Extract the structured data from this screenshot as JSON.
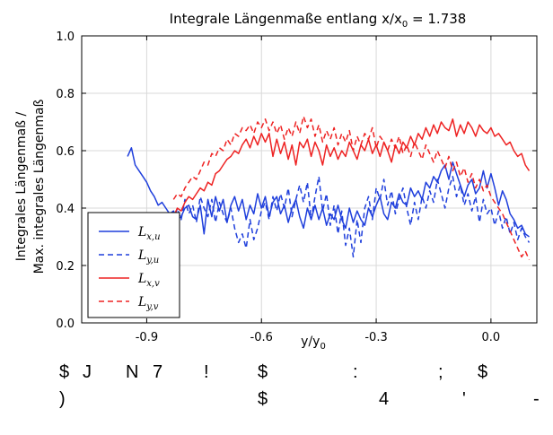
{
  "chart_data": {
    "type": "line",
    "title": "Integrale Längenmaße entlang x/x",
    "title_subscript": "0",
    "title_suffix": " = 1.738",
    "xlabel": "y/y",
    "xlabel_subscript": "0",
    "ylabel_line1": "Integrales Längenmaß /",
    "ylabel_line2": "Max. integrales Längenmaß",
    "xlim": [
      -1.07,
      0.12
    ],
    "ylim": [
      0.0,
      1.0
    ],
    "xticks": [
      -0.9,
      -0.6,
      -0.3,
      0.0
    ],
    "xtick_labels": [
      "-0.9",
      "-0.6",
      "-0.3",
      "0.0"
    ],
    "yticks": [
      0.0,
      0.2,
      0.4,
      0.6,
      0.8,
      1.0
    ],
    "ytick_labels": [
      "0.0",
      "0.2",
      "0.4",
      "0.6",
      "0.8",
      "1.0"
    ],
    "grid": true,
    "legend_position": "bottom-left",
    "series": [
      {
        "name": "L_{x,u}",
        "color": "#1f3fdc",
        "dash": "solid",
        "x": [
          -0.95,
          -0.94,
          -0.93,
          -0.92,
          -0.91,
          -0.9,
          -0.89,
          -0.88,
          -0.87,
          -0.86,
          -0.85,
          -0.84,
          -0.83,
          -0.82,
          -0.81,
          -0.8,
          -0.79,
          -0.78,
          -0.77,
          -0.76,
          -0.75,
          -0.74,
          -0.73,
          -0.72,
          -0.71,
          -0.7,
          -0.69,
          -0.68,
          -0.67,
          -0.66,
          -0.65,
          -0.64,
          -0.63,
          -0.62,
          -0.61,
          -0.6,
          -0.59,
          -0.58,
          -0.57,
          -0.56,
          -0.55,
          -0.54,
          -0.53,
          -0.52,
          -0.51,
          -0.5,
          -0.49,
          -0.48,
          -0.47,
          -0.46,
          -0.45,
          -0.44,
          -0.43,
          -0.42,
          -0.41,
          -0.4,
          -0.39,
          -0.38,
          -0.37,
          -0.36,
          -0.35,
          -0.34,
          -0.33,
          -0.32,
          -0.31,
          -0.3,
          -0.29,
          -0.28,
          -0.27,
          -0.26,
          -0.25,
          -0.24,
          -0.23,
          -0.22,
          -0.21,
          -0.2,
          -0.19,
          -0.18,
          -0.17,
          -0.16,
          -0.15,
          -0.14,
          -0.13,
          -0.12,
          -0.11,
          -0.1,
          -0.09,
          -0.08,
          -0.07,
          -0.06,
          -0.05,
          -0.04,
          -0.03,
          -0.02,
          -0.01,
          0.0,
          0.01,
          0.02,
          0.03,
          0.04,
          0.05,
          0.06,
          0.07,
          0.08,
          0.09,
          0.1
        ],
        "y": [
          0.58,
          0.61,
          0.55,
          0.53,
          0.51,
          0.49,
          0.46,
          0.44,
          0.41,
          0.42,
          0.4,
          0.38,
          0.39,
          0.36,
          0.37,
          0.4,
          0.41,
          0.37,
          0.36,
          0.41,
          0.31,
          0.43,
          0.37,
          0.44,
          0.39,
          0.43,
          0.35,
          0.41,
          0.44,
          0.39,
          0.43,
          0.36,
          0.41,
          0.38,
          0.45,
          0.4,
          0.44,
          0.37,
          0.42,
          0.44,
          0.38,
          0.41,
          0.35,
          0.4,
          0.43,
          0.37,
          0.33,
          0.4,
          0.36,
          0.41,
          0.36,
          0.4,
          0.34,
          0.38,
          0.36,
          0.41,
          0.36,
          0.33,
          0.4,
          0.35,
          0.39,
          0.36,
          0.34,
          0.4,
          0.37,
          0.41,
          0.44,
          0.38,
          0.36,
          0.42,
          0.4,
          0.45,
          0.42,
          0.41,
          0.47,
          0.44,
          0.46,
          0.43,
          0.49,
          0.47,
          0.51,
          0.49,
          0.53,
          0.55,
          0.5,
          0.56,
          0.52,
          0.48,
          0.44,
          0.48,
          0.5,
          0.45,
          0.47,
          0.53,
          0.47,
          0.52,
          0.47,
          0.41,
          0.46,
          0.43,
          0.38,
          0.36,
          0.33,
          0.34,
          0.31,
          0.3
        ]
      },
      {
        "name": "L_{y,u}",
        "color": "#1f3fdc",
        "dash": "dashed",
        "x": [
          -0.83,
          -0.82,
          -0.81,
          -0.8,
          -0.79,
          -0.78,
          -0.77,
          -0.76,
          -0.75,
          -0.74,
          -0.73,
          -0.72,
          -0.71,
          -0.7,
          -0.69,
          -0.68,
          -0.67,
          -0.66,
          -0.65,
          -0.64,
          -0.63,
          -0.62,
          -0.61,
          -0.6,
          -0.59,
          -0.58,
          -0.57,
          -0.56,
          -0.55,
          -0.54,
          -0.53,
          -0.52,
          -0.51,
          -0.5,
          -0.49,
          -0.48,
          -0.47,
          -0.46,
          -0.45,
          -0.44,
          -0.43,
          -0.42,
          -0.41,
          -0.4,
          -0.39,
          -0.38,
          -0.37,
          -0.36,
          -0.35,
          -0.34,
          -0.33,
          -0.32,
          -0.31,
          -0.3,
          -0.29,
          -0.28,
          -0.27,
          -0.26,
          -0.25,
          -0.24,
          -0.23,
          -0.22,
          -0.21,
          -0.2,
          -0.19,
          -0.18,
          -0.17,
          -0.16,
          -0.15,
          -0.14,
          -0.13,
          -0.12,
          -0.11,
          -0.1,
          -0.09,
          -0.08,
          -0.07,
          -0.06,
          -0.05,
          -0.04,
          -0.03,
          -0.02,
          -0.01,
          0.0,
          0.01,
          0.02,
          0.03,
          0.04,
          0.05,
          0.06,
          0.07,
          0.08,
          0.09,
          0.1
        ],
        "y": [
          0.35,
          0.4,
          0.36,
          0.43,
          0.38,
          0.41,
          0.35,
          0.44,
          0.4,
          0.37,
          0.43,
          0.35,
          0.42,
          0.38,
          0.35,
          0.4,
          0.33,
          0.28,
          0.31,
          0.26,
          0.36,
          0.29,
          0.33,
          0.39,
          0.42,
          0.36,
          0.44,
          0.39,
          0.45,
          0.4,
          0.47,
          0.37,
          0.43,
          0.48,
          0.42,
          0.49,
          0.36,
          0.44,
          0.51,
          0.39,
          0.45,
          0.34,
          0.41,
          0.31,
          0.39,
          0.27,
          0.33,
          0.23,
          0.36,
          0.28,
          0.4,
          0.44,
          0.36,
          0.47,
          0.43,
          0.5,
          0.41,
          0.46,
          0.38,
          0.43,
          0.47,
          0.4,
          0.34,
          0.42,
          0.36,
          0.44,
          0.4,
          0.46,
          0.42,
          0.5,
          0.45,
          0.4,
          0.47,
          0.51,
          0.44,
          0.48,
          0.41,
          0.45,
          0.39,
          0.44,
          0.35,
          0.43,
          0.38,
          0.4,
          0.34,
          0.39,
          0.33,
          0.37,
          0.31,
          0.35,
          0.29,
          0.33,
          0.3,
          0.28
        ]
      },
      {
        "name": "L_{x,v}",
        "color": "#ee2222",
        "dash": "solid",
        "x": [
          -0.83,
          -0.82,
          -0.81,
          -0.8,
          -0.79,
          -0.78,
          -0.77,
          -0.76,
          -0.75,
          -0.74,
          -0.73,
          -0.72,
          -0.71,
          -0.7,
          -0.69,
          -0.68,
          -0.67,
          -0.66,
          -0.65,
          -0.64,
          -0.63,
          -0.62,
          -0.61,
          -0.6,
          -0.59,
          -0.58,
          -0.57,
          -0.56,
          -0.55,
          -0.54,
          -0.53,
          -0.52,
          -0.51,
          -0.5,
          -0.49,
          -0.48,
          -0.47,
          -0.46,
          -0.45,
          -0.44,
          -0.43,
          -0.42,
          -0.41,
          -0.4,
          -0.39,
          -0.38,
          -0.37,
          -0.36,
          -0.35,
          -0.34,
          -0.33,
          -0.32,
          -0.31,
          -0.3,
          -0.29,
          -0.28,
          -0.27,
          -0.26,
          -0.25,
          -0.24,
          -0.23,
          -0.22,
          -0.21,
          -0.2,
          -0.19,
          -0.18,
          -0.17,
          -0.16,
          -0.15,
          -0.14,
          -0.13,
          -0.12,
          -0.11,
          -0.1,
          -0.09,
          -0.08,
          -0.07,
          -0.06,
          -0.05,
          -0.04,
          -0.03,
          -0.02,
          -0.01,
          0.0,
          0.01,
          0.02,
          0.03,
          0.04,
          0.05,
          0.06,
          0.07,
          0.08,
          0.09,
          0.1
        ],
        "y": [
          0.37,
          0.4,
          0.39,
          0.42,
          0.44,
          0.43,
          0.45,
          0.47,
          0.46,
          0.49,
          0.48,
          0.52,
          0.53,
          0.55,
          0.57,
          0.58,
          0.6,
          0.59,
          0.62,
          0.64,
          0.61,
          0.65,
          0.62,
          0.66,
          0.63,
          0.66,
          0.58,
          0.64,
          0.59,
          0.63,
          0.57,
          0.62,
          0.55,
          0.63,
          0.61,
          0.64,
          0.58,
          0.63,
          0.6,
          0.55,
          0.62,
          0.58,
          0.61,
          0.57,
          0.6,
          0.58,
          0.63,
          0.6,
          0.57,
          0.62,
          0.6,
          0.64,
          0.59,
          0.62,
          0.58,
          0.63,
          0.6,
          0.56,
          0.62,
          0.59,
          0.63,
          0.61,
          0.65,
          0.62,
          0.66,
          0.64,
          0.68,
          0.65,
          0.69,
          0.66,
          0.7,
          0.68,
          0.67,
          0.71,
          0.65,
          0.69,
          0.66,
          0.7,
          0.68,
          0.65,
          0.69,
          0.67,
          0.66,
          0.68,
          0.65,
          0.66,
          0.64,
          0.62,
          0.63,
          0.6,
          0.58,
          0.59,
          0.55,
          0.53
        ]
      },
      {
        "name": "L_{y,v}",
        "color": "#ee2222",
        "dash": "dashed",
        "x": [
          -0.83,
          -0.82,
          -0.81,
          -0.8,
          -0.79,
          -0.78,
          -0.77,
          -0.76,
          -0.75,
          -0.74,
          -0.73,
          -0.72,
          -0.71,
          -0.7,
          -0.69,
          -0.68,
          -0.67,
          -0.66,
          -0.65,
          -0.64,
          -0.63,
          -0.62,
          -0.61,
          -0.6,
          -0.59,
          -0.58,
          -0.57,
          -0.56,
          -0.55,
          -0.54,
          -0.53,
          -0.52,
          -0.51,
          -0.5,
          -0.49,
          -0.48,
          -0.47,
          -0.46,
          -0.45,
          -0.44,
          -0.43,
          -0.42,
          -0.41,
          -0.4,
          -0.39,
          -0.38,
          -0.37,
          -0.36,
          -0.35,
          -0.34,
          -0.33,
          -0.32,
          -0.31,
          -0.3,
          -0.29,
          -0.28,
          -0.27,
          -0.26,
          -0.25,
          -0.24,
          -0.23,
          -0.22,
          -0.21,
          -0.2,
          -0.19,
          -0.18,
          -0.17,
          -0.16,
          -0.15,
          -0.14,
          -0.13,
          -0.12,
          -0.11,
          -0.1,
          -0.09,
          -0.08,
          -0.07,
          -0.06,
          -0.05,
          -0.04,
          -0.03,
          -0.02,
          -0.01,
          0.0,
          0.01,
          0.02,
          0.03,
          0.04,
          0.05,
          0.06,
          0.07,
          0.08,
          0.09,
          0.1
        ],
        "y": [
          0.43,
          0.45,
          0.44,
          0.47,
          0.49,
          0.51,
          0.5,
          0.53,
          0.56,
          0.55,
          0.59,
          0.58,
          0.61,
          0.6,
          0.64,
          0.62,
          0.66,
          0.65,
          0.68,
          0.67,
          0.69,
          0.66,
          0.7,
          0.68,
          0.71,
          0.67,
          0.7,
          0.66,
          0.69,
          0.64,
          0.68,
          0.65,
          0.7,
          0.66,
          0.72,
          0.68,
          0.71,
          0.65,
          0.69,
          0.63,
          0.67,
          0.64,
          0.68,
          0.62,
          0.66,
          0.63,
          0.67,
          0.6,
          0.65,
          0.62,
          0.66,
          0.64,
          0.68,
          0.61,
          0.65,
          0.63,
          0.6,
          0.64,
          0.61,
          0.65,
          0.59,
          0.62,
          0.58,
          0.63,
          0.6,
          0.57,
          0.62,
          0.59,
          0.56,
          0.6,
          0.57,
          0.54,
          0.58,
          0.53,
          0.56,
          0.51,
          0.54,
          0.49,
          0.52,
          0.47,
          0.5,
          0.46,
          0.48,
          0.44,
          0.42,
          0.4,
          0.38,
          0.35,
          0.32,
          0.29,
          0.26,
          0.23,
          0.25,
          0.22
        ]
      }
    ]
  },
  "footer_garbled": {
    "line1": [
      "$",
      "J",
      "N",
      "7",
      "!",
      "$",
      ":",
      ";",
      "$"
    ],
    "line2": [
      ")",
      "$",
      "4",
      "'",
      "-"
    ]
  }
}
